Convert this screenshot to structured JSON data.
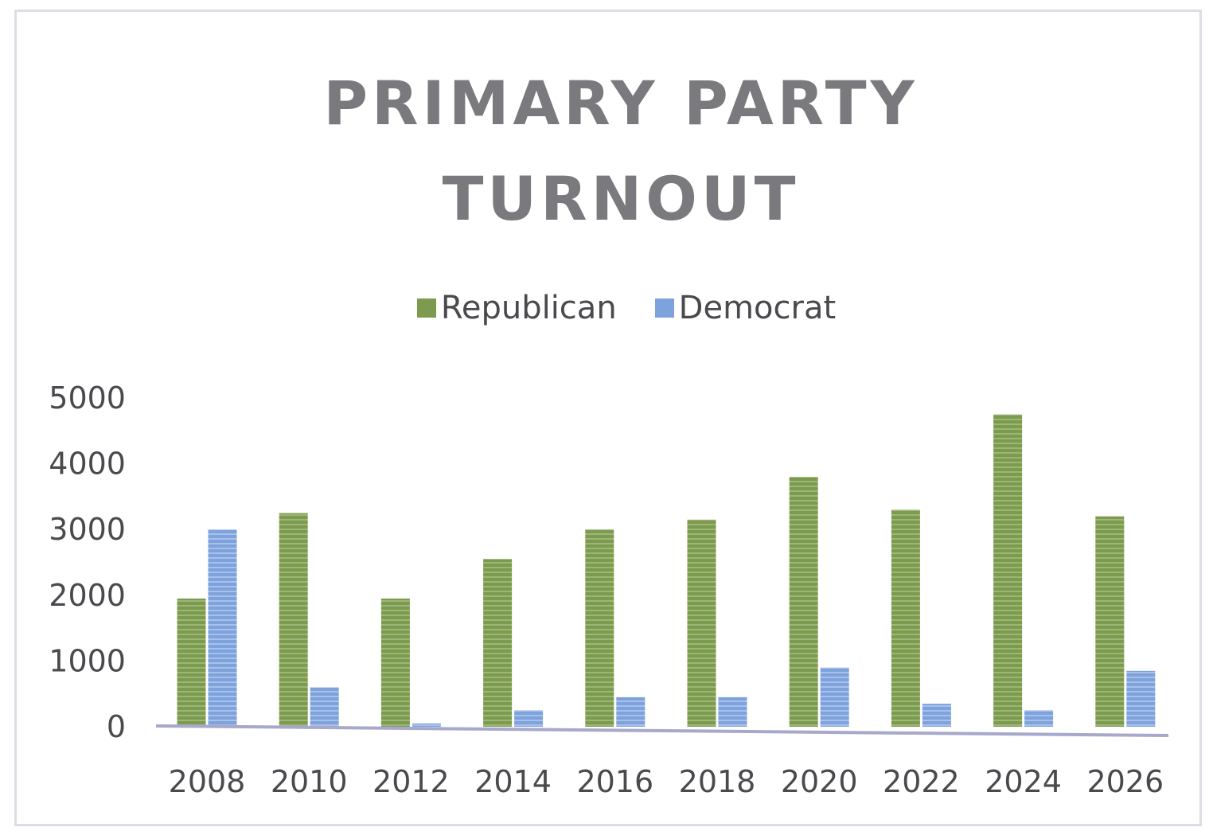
{
  "chart_data": {
    "type": "bar",
    "title": "PRIMARY PARTY\nTURNOUT",
    "xlabel": "",
    "ylabel": "",
    "categories": [
      "2008",
      "2010",
      "2012",
      "2014",
      "2016",
      "2018",
      "2020",
      "2022",
      "2024",
      "2026"
    ],
    "series": [
      {
        "name": "Republican",
        "color": "#7d9b4f",
        "values": [
          1950,
          3250,
          1950,
          2550,
          3000,
          3150,
          3800,
          3300,
          4750,
          3200
        ]
      },
      {
        "name": "Democrat",
        "color": "#7ea2dc",
        "values": [
          3000,
          600,
          50,
          250,
          450,
          450,
          900,
          350,
          250,
          850
        ]
      }
    ],
    "y_ticks": [
      "5000",
      "4000",
      "3000",
      "2000",
      "1000",
      "0"
    ],
    "ylim": [
      0,
      5000
    ],
    "grid": false,
    "legend_position": "top"
  }
}
